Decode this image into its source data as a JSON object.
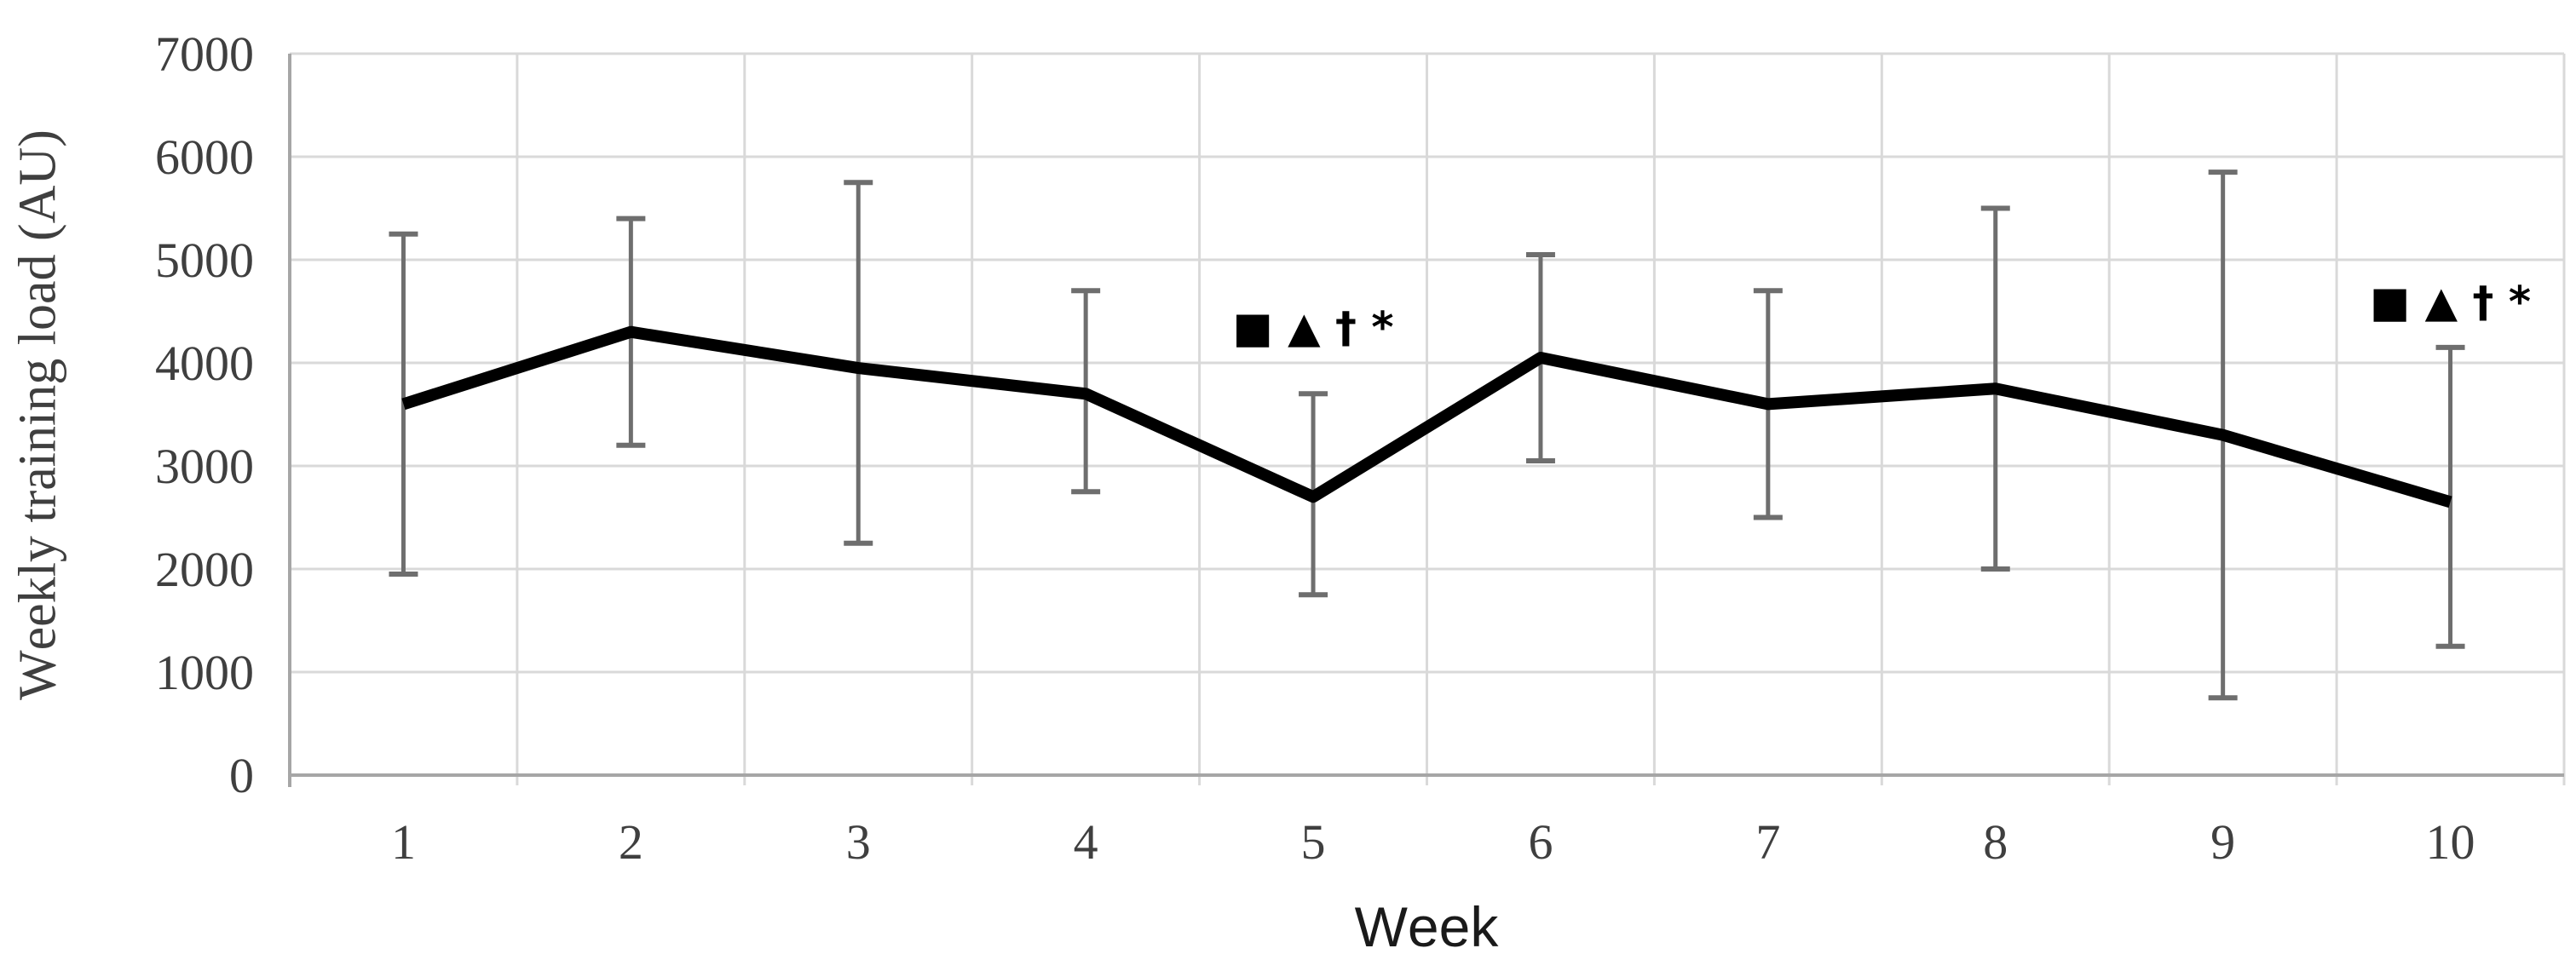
{
  "chart_data": {
    "type": "line",
    "title": "",
    "xlabel": "Week",
    "ylabel": "Weekly training load (AU)",
    "categories": [
      "1",
      "2",
      "3",
      "4",
      "5",
      "6",
      "7",
      "8",
      "9",
      "10"
    ],
    "series": [
      {
        "name": "Weekly training load (AU)",
        "values": [
          3600,
          4300,
          3950,
          3700,
          2700,
          4050,
          3600,
          3750,
          3300,
          2650
        ]
      }
    ],
    "error_bars": {
      "upper_values": [
        5250,
        5400,
        5750,
        4700,
        3700,
        5050,
        4700,
        5500,
        5850,
        4150
      ],
      "lower_values": [
        1950,
        3200,
        2250,
        2750,
        1750,
        3050,
        2500,
        2000,
        750,
        1250
      ]
    },
    "annotations": [
      {
        "text": "■ ▲ † *",
        "week": 5,
        "y": 4350
      },
      {
        "text": "■ ▲ † *",
        "week": 10,
        "y": 4600
      }
    ],
    "ylim": [
      0,
      7000
    ],
    "yticks": [
      0,
      1000,
      2000,
      3000,
      4000,
      5000,
      6000,
      7000
    ],
    "ytick_step": 1000,
    "grid": "both",
    "legend": "none",
    "marker": "none"
  },
  "styles": {
    "line_color": "#000000",
    "error_bar_color": "#6e6e6e",
    "gridline_color": "#d9d9d9",
    "axis_color": "#a6a6a6",
    "tick_text_color": "#3f3f3f",
    "annotation_color": "#000000",
    "background_color": "#ffffff"
  }
}
